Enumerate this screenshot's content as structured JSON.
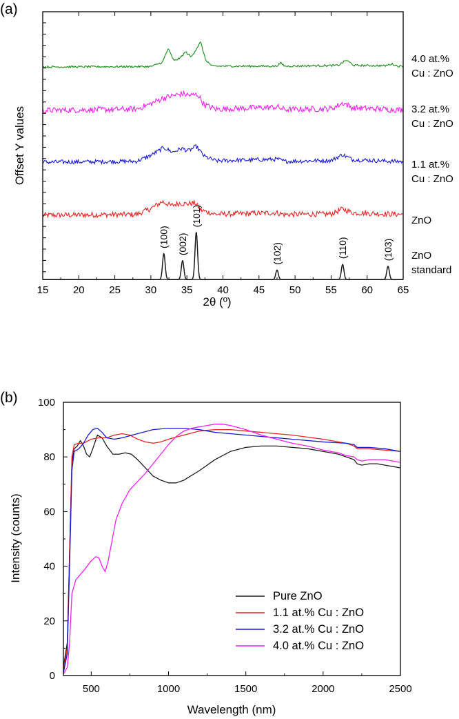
{
  "chart_data": [
    {
      "panel_label": "(a)",
      "type": "line",
      "xlabel": "2θ (º)",
      "ylabel": "Offset Y values",
      "xlim": [
        15,
        65
      ],
      "xticks": [
        15,
        20,
        25,
        30,
        35,
        40,
        45,
        50,
        55,
        60,
        65
      ],
      "series": [
        {
          "name": "ZnO standard",
          "label_lines": [
            "ZnO",
            "standard"
          ],
          "color": "#1a1a1a",
          "peaks": [
            {
              "hkl": "(100)",
              "x": 31.8,
              "h": 0.55
            },
            {
              "hkl": "(002)",
              "x": 34.4,
              "h": 0.4
            },
            {
              "hkl": "(101)",
              "x": 36.3,
              "h": 1.0
            },
            {
              "hkl": "(102)",
              "x": 47.5,
              "h": 0.2
            },
            {
              "hkl": "(110)",
              "x": 56.6,
              "h": 0.32
            },
            {
              "hkl": "(103)",
              "x": 62.9,
              "h": 0.28
            }
          ]
        },
        {
          "name": "ZnO",
          "label_lines": [
            "ZnO"
          ],
          "color": "#e8241f",
          "noise": 0.65,
          "pattern": [
            [
              15,
              0
            ],
            [
              28,
              0.1
            ],
            [
              30,
              0.8
            ],
            [
              31.6,
              1.65
            ],
            [
              32.8,
              1.15
            ],
            [
              34,
              1.45
            ],
            [
              35,
              1.35
            ],
            [
              36.1,
              1.5
            ],
            [
              37,
              0.6
            ],
            [
              39,
              0.12
            ],
            [
              47.4,
              0.3
            ],
            [
              48.5,
              0.1
            ],
            [
              55,
              0.15
            ],
            [
              56.6,
              0.75
            ],
            [
              58,
              0.3
            ],
            [
              65,
              0.1
            ]
          ]
        },
        {
          "name": "1.1 at.% Cu : ZnO",
          "label_lines": [
            "1.1 at.%",
            "Cu : ZnO"
          ],
          "color": "#1a1ad6",
          "noise": 0.5,
          "pattern": [
            [
              15,
              0
            ],
            [
              28,
              0.1
            ],
            [
              30,
              0.8
            ],
            [
              31.8,
              1.75
            ],
            [
              33,
              1.2
            ],
            [
              34.3,
              1.65
            ],
            [
              35.2,
              1.35
            ],
            [
              36.3,
              1.9
            ],
            [
              37.4,
              0.7
            ],
            [
              39,
              0.15
            ],
            [
              47.6,
              0.35
            ],
            [
              48.5,
              0.1
            ],
            [
              55,
              0.2
            ],
            [
              56.6,
              0.9
            ],
            [
              58,
              0.3
            ],
            [
              65,
              0.05
            ]
          ]
        },
        {
          "name": "3.2 at.% Cu : ZnO",
          "label_lines": [
            "3.2 at.%",
            "Cu : ZnO"
          ],
          "color": "#ee22ee",
          "noise": 0.7,
          "pattern": [
            [
              15,
              0
            ],
            [
              28,
              0.15
            ],
            [
              30,
              0.8
            ],
            [
              31.7,
              1.5
            ],
            [
              33,
              1.75
            ],
            [
              34.3,
              2.0
            ],
            [
              35.5,
              1.8
            ],
            [
              36.5,
              1.9
            ],
            [
              37.4,
              0.7
            ],
            [
              39,
              0.15
            ],
            [
              47.6,
              0.4
            ],
            [
              48.5,
              0.1
            ],
            [
              55,
              0.2
            ],
            [
              56.7,
              0.9
            ],
            [
              58,
              0.3
            ],
            [
              65,
              0.05
            ]
          ]
        },
        {
          "name": "4.0 at.% Cu : ZnO",
          "label_lines": [
            "4.0 at.%",
            "Cu : ZnO"
          ],
          "color": "#138c13",
          "noise": 0.25,
          "pattern": [
            [
              15,
              0
            ],
            [
              30,
              0.05
            ],
            [
              31.6,
              0.6
            ],
            [
              32.4,
              2.4
            ],
            [
              33.2,
              0.8
            ],
            [
              34.1,
              1.2
            ],
            [
              34.8,
              2.0
            ],
            [
              35.6,
              1.3
            ],
            [
              36.9,
              3.3
            ],
            [
              37.6,
              0.9
            ],
            [
              38.5,
              0.1
            ],
            [
              47.4,
              0.1
            ],
            [
              48,
              0.5
            ],
            [
              48.6,
              0.1
            ],
            [
              56,
              0.2
            ],
            [
              57.1,
              0.9
            ],
            [
              58.2,
              0.2
            ],
            [
              62.5,
              0.15
            ],
            [
              63.4,
              0.4
            ],
            [
              64.3,
              0.1
            ],
            [
              65,
              0.1
            ]
          ]
        }
      ]
    },
    {
      "panel_label": "(b)",
      "type": "line",
      "xlabel": "Wavelength (nm)",
      "ylabel": "Intensity (counts)",
      "xlim": [
        320,
        2500
      ],
      "ylim": [
        0,
        100
      ],
      "xticks": [
        500,
        1000,
        1500,
        2000,
        2500
      ],
      "yticks": [
        0,
        20,
        40,
        60,
        80,
        100
      ],
      "legend_position": "bottom-right",
      "series": [
        {
          "name": "Pure ZnO",
          "color": "#1a1a1a",
          "x": [
            320,
            345,
            360,
            375,
            390,
            410,
            430,
            450,
            470,
            490,
            510,
            540,
            570,
            600,
            640,
            680,
            720,
            760,
            800,
            850,
            900,
            950,
            1000,
            1050,
            1100,
            1200,
            1300,
            1400,
            1500,
            1600,
            1700,
            1800,
            1900,
            2000,
            2100,
            2150,
            2200,
            2220,
            2250,
            2300,
            2350,
            2400,
            2450,
            2500
          ],
          "y": [
            3,
            12,
            45,
            78,
            83,
            84,
            86,
            84,
            81,
            80,
            83,
            88,
            87,
            84,
            81,
            81,
            81.5,
            81,
            79,
            76,
            73,
            71.5,
            70.5,
            70.5,
            71.5,
            75,
            79,
            82,
            83.5,
            84,
            84,
            83.5,
            83,
            82,
            81,
            80,
            79,
            77.5,
            77,
            77.5,
            77.5,
            77,
            76.5,
            76
          ]
        },
        {
          "name": "1.1 at.% Cu : ZnO",
          "color": "#e8241f",
          "x": [
            320,
            345,
            360,
            375,
            390,
            420,
            450,
            500,
            550,
            600,
            650,
            700,
            750,
            800,
            850,
            900,
            950,
            1000,
            1100,
            1200,
            1300,
            1400,
            1500,
            1600,
            1800,
            2000,
            2150,
            2200,
            2220,
            2300,
            2400,
            2500
          ],
          "y": [
            2,
            10,
            45,
            80,
            84.5,
            85,
            85,
            86.5,
            87,
            87,
            88,
            88.5,
            88,
            86.5,
            85.5,
            85,
            85.5,
            86.5,
            88,
            89.5,
            90,
            90,
            89.5,
            89,
            88,
            86.5,
            85,
            84,
            83,
            83,
            82.5,
            82
          ]
        },
        {
          "name": "3.2 at.% Cu : ZnO",
          "color": "#1a1ad6",
          "x": [
            320,
            345,
            360,
            375,
            390,
            420,
            450,
            480,
            510,
            540,
            570,
            600,
            650,
            700,
            800,
            900,
            1000,
            1100,
            1200,
            1300,
            1400,
            1500,
            1600,
            1800,
            2000,
            2150,
            2200,
            2220,
            2300,
            2400,
            2500
          ],
          "y": [
            1,
            8,
            40,
            75,
            82,
            83,
            85,
            88,
            90,
            90.5,
            89,
            87,
            86.5,
            87,
            88.5,
            90,
            90.5,
            90.5,
            90,
            89,
            88.5,
            88,
            87.5,
            86.5,
            85.5,
            85,
            84.5,
            83.5,
            83.5,
            83,
            82
          ]
        },
        {
          "name": "4.0 at.% Cu : ZnO",
          "color": "#ee22ee",
          "x": [
            320,
            345,
            360,
            375,
            400,
            430,
            460,
            500,
            530,
            550,
            570,
            590,
            610,
            630,
            660,
            700,
            750,
            800,
            850,
            900,
            950,
            1000,
            1050,
            1100,
            1150,
            1200,
            1250,
            1300,
            1350,
            1400,
            1500,
            1600,
            1700,
            1800,
            1900,
            2000,
            2100,
            2150,
            2200,
            2220,
            2250,
            2300,
            2400,
            2500
          ],
          "y": [
            0.5,
            3,
            12,
            30,
            35,
            37,
            39,
            42,
            43.5,
            43,
            40,
            38,
            42,
            48,
            57,
            63,
            68,
            71,
            74,
            77.5,
            81,
            84.5,
            87.5,
            89.5,
            90.5,
            91,
            91.5,
            92,
            92,
            91.5,
            90,
            88,
            86.5,
            85,
            84,
            82.5,
            81.5,
            80.5,
            80,
            79,
            78.5,
            79,
            79,
            78
          ]
        }
      ]
    }
  ]
}
